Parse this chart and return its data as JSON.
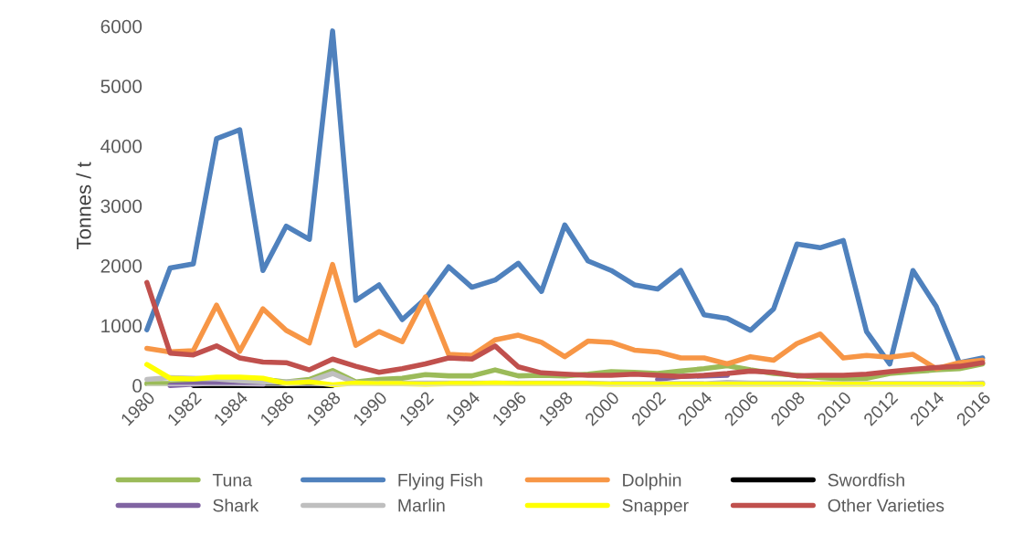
{
  "chart_data": {
    "type": "line",
    "ylabel": "Tonnes / t",
    "x": [
      1980,
      1981,
      1982,
      1983,
      1984,
      1985,
      1986,
      1987,
      1988,
      1989,
      1990,
      1991,
      1992,
      1993,
      1994,
      1995,
      1996,
      1997,
      1998,
      1999,
      2000,
      2001,
      2002,
      2003,
      2004,
      2005,
      2006,
      2007,
      2008,
      2009,
      2010,
      2011,
      2012,
      2013,
      2014,
      2015,
      2016
    ],
    "xlim": [
      1980,
      2016
    ],
    "xticks": [
      1980,
      1982,
      1984,
      1986,
      1988,
      1990,
      1992,
      1994,
      1996,
      1998,
      2000,
      2002,
      2004,
      2006,
      2008,
      2010,
      2012,
      2014,
      2016
    ],
    "ylim": [
      0,
      6000
    ],
    "yticks": [
      0,
      1000,
      2000,
      3000,
      4000,
      5000,
      6000
    ],
    "grid": false,
    "legend": "bottom",
    "line_style": "solid",
    "marker": "none",
    "series": [
      {
        "name": "Tuna",
        "color": "#9bbb59",
        "values": [
          30,
          30,
          40,
          80,
          100,
          100,
          60,
          100,
          250,
          60,
          100,
          120,
          180,
          160,
          160,
          260,
          160,
          170,
          160,
          190,
          230,
          220,
          200,
          240,
          280,
          330,
          260,
          200,
          170,
          130,
          110,
          120,
          200,
          230,
          260,
          280,
          360
        ]
      },
      {
        "name": "Flying Fish",
        "color": "#4f81bd",
        "values": [
          930,
          1960,
          2030,
          4120,
          4270,
          1920,
          2660,
          2440,
          5920,
          1420,
          1680,
          1100,
          1450,
          1980,
          1640,
          1760,
          2040,
          1570,
          2680,
          2080,
          1920,
          1680,
          1610,
          1920,
          1180,
          1120,
          920,
          1280,
          2360,
          2300,
          2420,
          900,
          360,
          1920,
          1320,
          380,
          460
        ]
      },
      {
        "name": "Dolphin",
        "color": "#f79646",
        "values": [
          620,
          560,
          580,
          1340,
          570,
          1280,
          920,
          710,
          2020,
          670,
          900,
          730,
          1480,
          520,
          500,
          760,
          840,
          720,
          480,
          740,
          720,
          590,
          560,
          460,
          460,
          360,
          480,
          420,
          700,
          860,
          460,
          500,
          470,
          520,
          280,
          380,
          420
        ]
      },
      {
        "name": "Swordfish",
        "color": "#000000",
        "values": [
          null,
          null,
          0,
          0,
          0,
          0,
          0,
          0,
          0,
          null,
          null,
          null,
          null,
          null,
          null,
          null,
          null,
          null,
          null,
          null,
          null,
          null,
          null,
          null,
          null,
          null,
          null,
          null,
          null,
          null,
          null,
          null,
          null,
          null,
          null,
          null,
          null
        ]
      },
      {
        "name": "Shark",
        "color": "#8064a2",
        "values": [
          null,
          0,
          20,
          40,
          30,
          20,
          null,
          null,
          null,
          null,
          null,
          null,
          null,
          null,
          null,
          null,
          null,
          null,
          null,
          null,
          null,
          null,
          100,
          150,
          160,
          170,
          null,
          null,
          null,
          null,
          null,
          null,
          null,
          null,
          null,
          null,
          null
        ]
      },
      {
        "name": "Marlin",
        "color": "#bfbfbf",
        "values": [
          100,
          130,
          120,
          110,
          80,
          60,
          60,
          70,
          200,
          40,
          40,
          40,
          40,
          40,
          40,
          40,
          40,
          40,
          40,
          40,
          30,
          30,
          30,
          30,
          30,
          50,
          40,
          40,
          40,
          30,
          30,
          30,
          30,
          30,
          30,
          30,
          40
        ]
      },
      {
        "name": "Snapper",
        "color": "#ffff00",
        "values": [
          350,
          120,
          110,
          140,
          140,
          120,
          30,
          60,
          10,
          40,
          30,
          30,
          20,
          30,
          30,
          40,
          30,
          30,
          30,
          30,
          20,
          20,
          20,
          20,
          20,
          20,
          20,
          20,
          20,
          20,
          20,
          20,
          20,
          20,
          20,
          20,
          20
        ]
      },
      {
        "name": "Other Varieties",
        "color": "#c0504d",
        "values": [
          1720,
          540,
          510,
          660,
          460,
          390,
          380,
          260,
          440,
          320,
          220,
          280,
          360,
          460,
          440,
          660,
          310,
          210,
          190,
          170,
          170,
          190,
          170,
          150,
          170,
          200,
          240,
          220,
          160,
          170,
          170,
          190,
          230,
          270,
          300,
          320,
          380
        ]
      }
    ]
  }
}
